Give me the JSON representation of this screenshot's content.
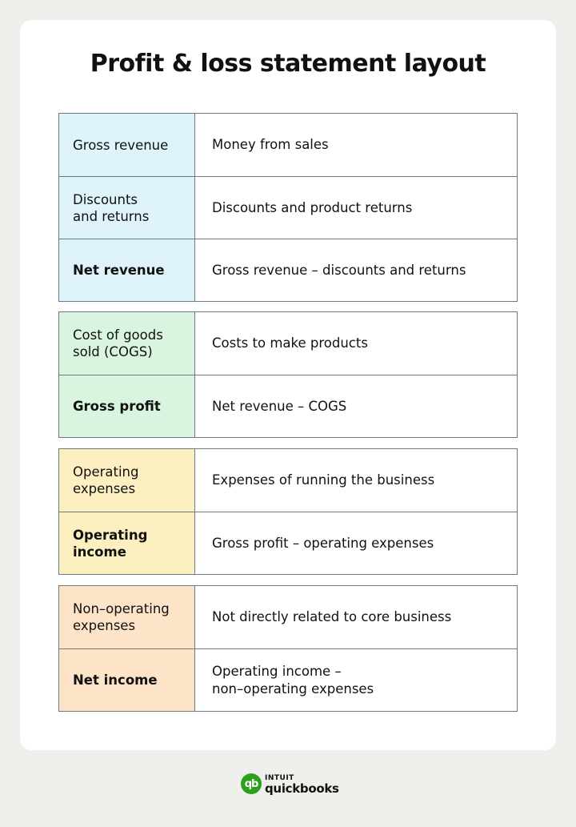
{
  "title": "Profit & loss statement layout",
  "colors": {
    "blue": "#dff3fb",
    "green": "#daf5df",
    "yellow": "#fdf0c0",
    "orange": "#fde3c8",
    "border": "#6f7b82",
    "logo": "#2ca01c"
  },
  "groups": [
    {
      "color": "blue",
      "rows": [
        {
          "label": "Gross revenue",
          "bold": false,
          "desc": "Money from sales"
        },
        {
          "label": "Discounts\nand returns",
          "bold": false,
          "desc": "Discounts and product returns"
        },
        {
          "label": "Net revenue",
          "bold": true,
          "desc": "Gross revenue – discounts and returns"
        }
      ]
    },
    {
      "color": "green",
      "rows": [
        {
          "label": "Cost of goods\nsold (COGS)",
          "bold": false,
          "desc": "Costs to make products"
        },
        {
          "label": "Gross profit",
          "bold": true,
          "desc": "Net revenue – COGS"
        }
      ]
    },
    {
      "color": "yellow",
      "rows": [
        {
          "label": "Operating\nexpenses",
          "bold": false,
          "desc": "Expenses of running the business"
        },
        {
          "label": "Operating\nincome",
          "bold": true,
          "desc": "Gross profit – operating expenses"
        }
      ]
    },
    {
      "color": "orange",
      "rows": [
        {
          "label": "Non–operating\nexpenses",
          "bold": false,
          "desc": "Not directly related to core business"
        },
        {
          "label": "Net income",
          "bold": true,
          "desc": "Operating income –\nnon–operating expenses"
        }
      ]
    }
  ],
  "logo": {
    "mark": "qb",
    "brand_top": "INTUIT",
    "brand_bottom": "quickbooks"
  }
}
